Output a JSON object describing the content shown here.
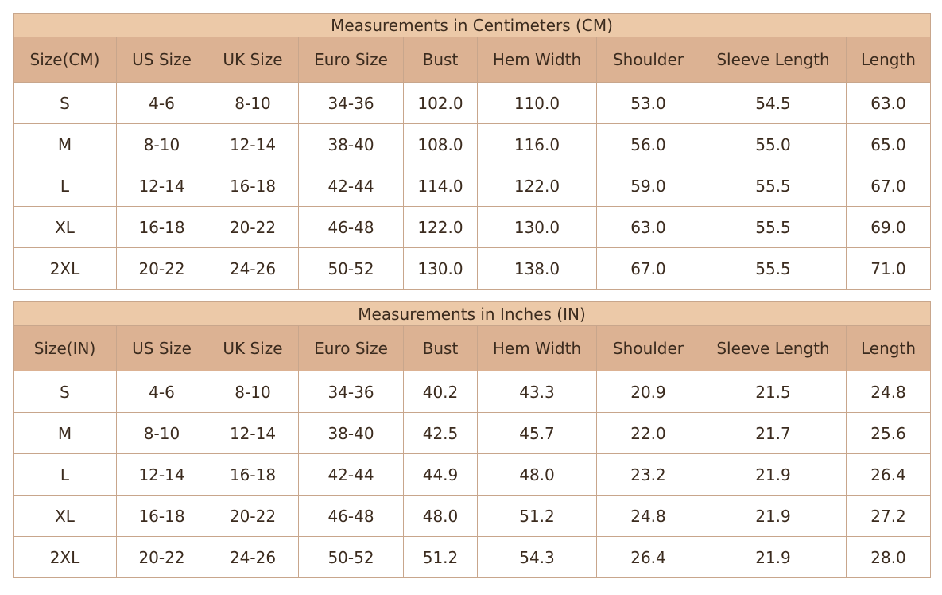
{
  "tables": [
    {
      "title": "Measurements in Centimeters (CM)",
      "headers": [
        "Size(CM)",
        "US Size",
        "UK Size",
        "Euro Size",
        "Bust",
        "Hem Width",
        "Shoulder",
        "Sleeve Length",
        "Length"
      ],
      "rows": [
        [
          "S",
          "4-6",
          "8-10",
          "34-36",
          "102.0",
          "110.0",
          "53.0",
          "54.5",
          "63.0"
        ],
        [
          "M",
          "8-10",
          "12-14",
          "38-40",
          "108.0",
          "116.0",
          "56.0",
          "55.0",
          "65.0"
        ],
        [
          "L",
          "12-14",
          "16-18",
          "42-44",
          "114.0",
          "122.0",
          "59.0",
          "55.5",
          "67.0"
        ],
        [
          "XL",
          "16-18",
          "20-22",
          "46-48",
          "122.0",
          "130.0",
          "63.0",
          "55.5",
          "69.0"
        ],
        [
          "2XL",
          "20-22",
          "24-26",
          "50-52",
          "130.0",
          "138.0",
          "67.0",
          "55.5",
          "71.0"
        ]
      ]
    },
    {
      "title": "Measurements in Inches (IN)",
      "headers": [
        "Size(IN)",
        "US Size",
        "UK Size",
        "Euro Size",
        "Bust",
        "Hem Width",
        "Shoulder",
        "Sleeve Length",
        "Length"
      ],
      "rows": [
        [
          "S",
          "4-6",
          "8-10",
          "34-36",
          "40.2",
          "43.3",
          "20.9",
          "21.5",
          "24.8"
        ],
        [
          "M",
          "8-10",
          "12-14",
          "38-40",
          "42.5",
          "45.7",
          "22.0",
          "21.7",
          "25.6"
        ],
        [
          "L",
          "12-14",
          "16-18",
          "42-44",
          "44.9",
          "48.0",
          "23.2",
          "21.9",
          "26.4"
        ],
        [
          "XL",
          "16-18",
          "20-22",
          "46-48",
          "48.0",
          "51.2",
          "24.8",
          "21.9",
          "27.2"
        ],
        [
          "2XL",
          "20-22",
          "24-26",
          "50-52",
          "51.2",
          "54.3",
          "26.4",
          "21.9",
          "28.0"
        ]
      ]
    }
  ]
}
